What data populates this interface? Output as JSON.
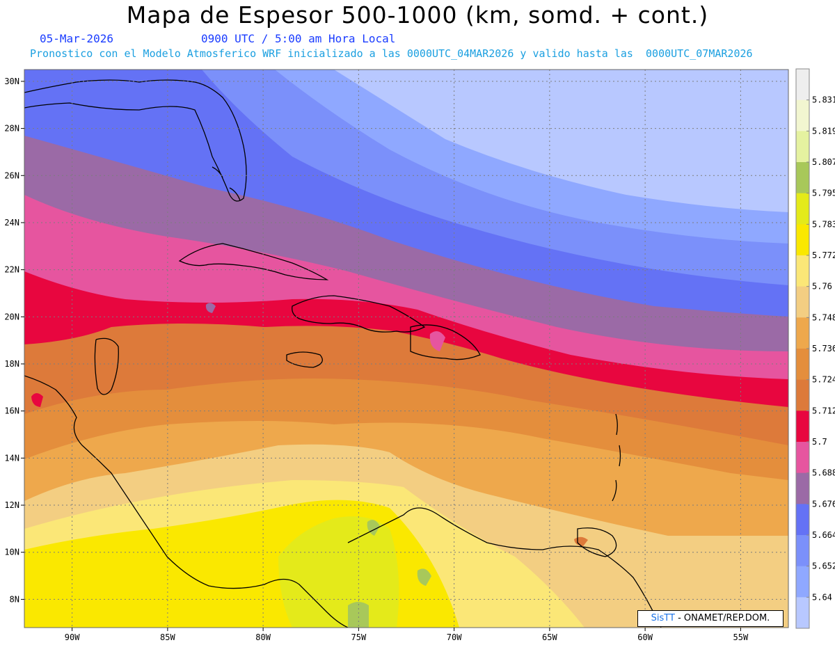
{
  "header": {
    "title": "Mapa de Espesor 500-1000 (km, somd. + cont.)",
    "date": "05-Mar-2026",
    "time": "0900 UTC / 5:00 am Hora Local",
    "description": "Pronostico con el Modelo Atmosferico WRF inicializado a las 0000UTC_04MAR2026 y valido hasta las  0000UTC_07MAR2026"
  },
  "map": {
    "lon_range": [
      -92.5,
      -52.5
    ],
    "lat_range": [
      6.8,
      30.5
    ],
    "lon_ticks": [
      "90W",
      "85W",
      "80W",
      "75W",
      "70W",
      "65W",
      "60W",
      "55W"
    ],
    "lat_ticks": [
      "30N",
      "28N",
      "26N",
      "24N",
      "22N",
      "20N",
      "18N",
      "16N",
      "14N",
      "12N",
      "10N",
      "8N"
    ],
    "grid": true
  },
  "legend": {
    "levels": [
      "5.831",
      "5.819",
      "5.807",
      "5.795",
      "5.783",
      "5.772",
      "5.76",
      "5.748",
      "5.736",
      "5.724",
      "5.712",
      "5.7",
      "5.688",
      "5.676",
      "5.664",
      "5.652",
      "5.64"
    ],
    "colors": [
      "#eeeeee",
      "#f2f6d0",
      "#e5f2a0",
      "#a8c85a",
      "#e4ea1a",
      "#fae800",
      "#fbe777",
      "#f3ce82",
      "#eea84c",
      "#e48e3c",
      "#dd7a3a",
      "#e8063f",
      "#e6559f",
      "#9b6aa6",
      "#6472f5",
      "#7b90fa",
      "#8fa8ff",
      "#b8c8ff"
    ]
  },
  "credit": {
    "brand": "SisTT",
    "text": " - ONAMET/REP.DOM."
  }
}
